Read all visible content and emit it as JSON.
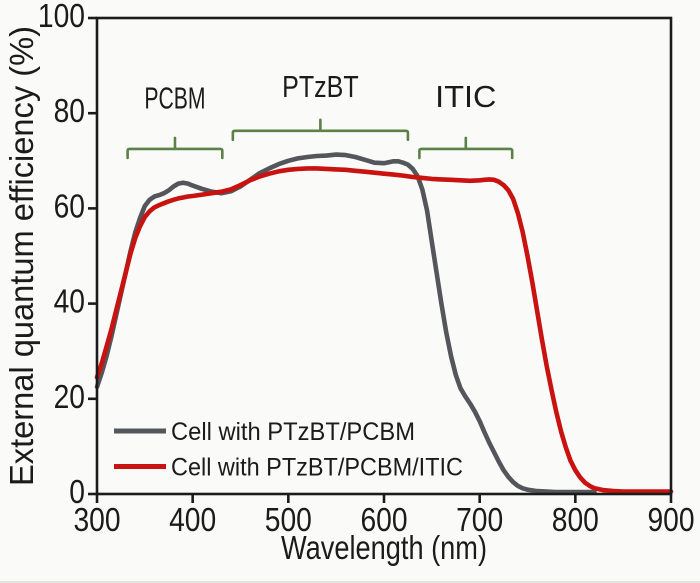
{
  "figure": {
    "background": "#fafaf8",
    "axis_color": "#1b1b1b",
    "annotation_color": "#5a8148"
  },
  "chart_data": {
    "type": "line",
    "title": "",
    "xlabel": "Wavelength (nm)",
    "ylabel": "External quantum efficiency (%)",
    "xlim": [
      300,
      900
    ],
    "ylim": [
      0,
      100
    ],
    "x_ticks": [
      300,
      400,
      500,
      600,
      700,
      800,
      900
    ],
    "y_ticks": [
      0,
      20,
      40,
      60,
      80,
      100
    ],
    "grid": false,
    "legend_position": "inside-lower-left",
    "series": [
      {
        "name": "Cell with PTzBT/PCBM",
        "color": "#54565c",
        "label_color": "#717176",
        "points": [
          [
            300,
            22.5
          ],
          [
            305,
            25.5
          ],
          [
            310,
            29
          ],
          [
            315,
            33
          ],
          [
            320,
            37.5
          ],
          [
            325,
            42
          ],
          [
            330,
            46.5
          ],
          [
            335,
            51
          ],
          [
            340,
            55
          ],
          [
            345,
            58
          ],
          [
            350,
            60.5
          ],
          [
            355,
            61.8
          ],
          [
            360,
            62.5
          ],
          [
            365,
            62.8
          ],
          [
            370,
            63.2
          ],
          [
            375,
            63.8
          ],
          [
            380,
            64.6
          ],
          [
            385,
            65.2
          ],
          [
            390,
            65.4
          ],
          [
            395,
            65.2
          ],
          [
            400,
            64.8
          ],
          [
            410,
            64.1
          ],
          [
            420,
            63.5
          ],
          [
            430,
            63.2
          ],
          [
            440,
            63.6
          ],
          [
            450,
            64.6
          ],
          [
            460,
            66
          ],
          [
            470,
            67.4
          ],
          [
            480,
            68.4
          ],
          [
            490,
            69.3
          ],
          [
            500,
            70
          ],
          [
            510,
            70.5
          ],
          [
            520,
            70.8
          ],
          [
            530,
            71
          ],
          [
            540,
            71.1
          ],
          [
            550,
            71.3
          ],
          [
            560,
            71.2
          ],
          [
            570,
            70.8
          ],
          [
            580,
            70.2
          ],
          [
            590,
            69.6
          ],
          [
            600,
            69.5
          ],
          [
            610,
            69.9
          ],
          [
            615,
            69.9
          ],
          [
            620,
            69.6
          ],
          [
            625,
            69.2
          ],
          [
            630,
            68.3
          ],
          [
            635,
            66.8
          ],
          [
            640,
            64
          ],
          [
            645,
            59.5
          ],
          [
            650,
            53
          ],
          [
            655,
            46.5
          ],
          [
            660,
            40
          ],
          [
            665,
            34
          ],
          [
            670,
            29
          ],
          [
            675,
            25
          ],
          [
            680,
            22.2
          ],
          [
            685,
            20.5
          ],
          [
            690,
            19
          ],
          [
            695,
            17.3
          ],
          [
            700,
            15.3
          ],
          [
            705,
            13
          ],
          [
            710,
            10.8
          ],
          [
            715,
            8.8
          ],
          [
            720,
            6.8
          ],
          [
            725,
            5
          ],
          [
            730,
            3.6
          ],
          [
            735,
            2.5
          ],
          [
            740,
            1.7
          ],
          [
            745,
            1.2
          ],
          [
            750,
            0.9
          ],
          [
            760,
            0.6
          ],
          [
            770,
            0.5
          ],
          [
            780,
            0.4
          ],
          [
            790,
            0.4
          ],
          [
            800,
            0.4
          ],
          [
            810,
            0.4
          ],
          [
            820,
            0.4
          ]
        ]
      },
      {
        "name": "Cell with PTzBT/PCBM/ITIC",
        "color": "#c81310",
        "label_color": "#c51f1b",
        "points": [
          [
            300,
            24.5
          ],
          [
            305,
            27.5
          ],
          [
            310,
            31
          ],
          [
            315,
            34.5
          ],
          [
            320,
            38.5
          ],
          [
            325,
            42.5
          ],
          [
            330,
            46.5
          ],
          [
            335,
            50.5
          ],
          [
            340,
            53.8
          ],
          [
            345,
            56.3
          ],
          [
            350,
            58.2
          ],
          [
            355,
            59.4
          ],
          [
            360,
            60.2
          ],
          [
            365,
            60.7
          ],
          [
            370,
            61.1
          ],
          [
            375,
            61.5
          ],
          [
            380,
            61.8
          ],
          [
            385,
            62.1
          ],
          [
            390,
            62.3
          ],
          [
            395,
            62.5
          ],
          [
            400,
            62.6
          ],
          [
            410,
            62.9
          ],
          [
            420,
            63.2
          ],
          [
            430,
            63.5
          ],
          [
            440,
            64
          ],
          [
            450,
            64.9
          ],
          [
            460,
            65.9
          ],
          [
            470,
            66.7
          ],
          [
            480,
            67.3
          ],
          [
            490,
            67.8
          ],
          [
            500,
            68.1
          ],
          [
            510,
            68.3
          ],
          [
            520,
            68.4
          ],
          [
            530,
            68.4
          ],
          [
            540,
            68.3
          ],
          [
            550,
            68.2
          ],
          [
            560,
            68.1
          ],
          [
            570,
            67.9
          ],
          [
            580,
            67.7
          ],
          [
            590,
            67.5
          ],
          [
            600,
            67.3
          ],
          [
            610,
            67.1
          ],
          [
            620,
            66.9
          ],
          [
            630,
            66.6
          ],
          [
            640,
            66.4
          ],
          [
            650,
            66.2
          ],
          [
            660,
            66.1
          ],
          [
            670,
            66
          ],
          [
            680,
            65.9
          ],
          [
            690,
            65.8
          ],
          [
            700,
            65.9
          ],
          [
            705,
            66
          ],
          [
            710,
            66.1
          ],
          [
            715,
            66
          ],
          [
            720,
            65.6
          ],
          [
            725,
            64.9
          ],
          [
            730,
            63.8
          ],
          [
            735,
            62
          ],
          [
            740,
            59
          ],
          [
            745,
            55
          ],
          [
            750,
            50
          ],
          [
            755,
            44.5
          ],
          [
            760,
            38.5
          ],
          [
            765,
            32.5
          ],
          [
            770,
            27
          ],
          [
            775,
            22
          ],
          [
            780,
            17.3
          ],
          [
            785,
            13.2
          ],
          [
            790,
            9.8
          ],
          [
            795,
            7
          ],
          [
            800,
            5
          ],
          [
            805,
            3.5
          ],
          [
            810,
            2.4
          ],
          [
            815,
            1.7
          ],
          [
            820,
            1.2
          ],
          [
            830,
            0.8
          ],
          [
            840,
            0.6
          ],
          [
            850,
            0.5
          ],
          [
            860,
            0.5
          ],
          [
            880,
            0.5
          ],
          [
            900,
            0.5
          ]
        ]
      }
    ],
    "annotations": [
      {
        "label": "PCBM",
        "x_start": 332,
        "x_end": 431,
        "bracket_y": 72.5,
        "label_y": 81.0
      },
      {
        "label": "PTzBT",
        "x_start": 442,
        "x_end": 625,
        "bracket_y": 76.3,
        "label_y": 83.4
      },
      {
        "label": "ITIC",
        "x_start": 637,
        "x_end": 734,
        "bracket_y": 72.5,
        "label_y": 81.3
      }
    ]
  }
}
